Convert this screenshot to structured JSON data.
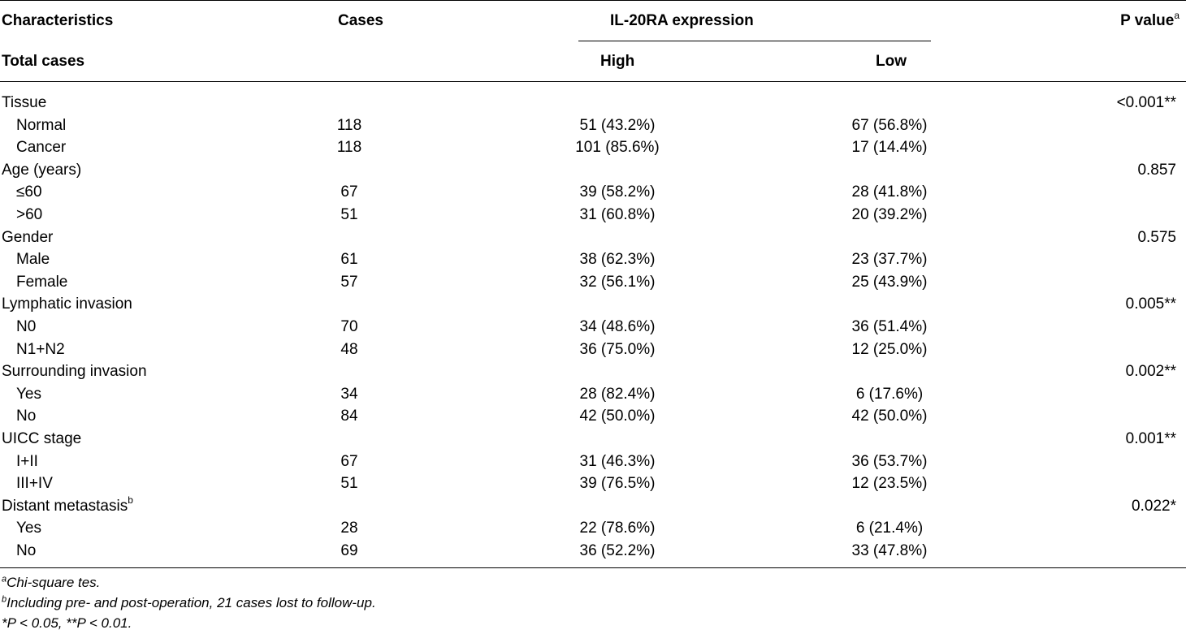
{
  "table": {
    "headers": {
      "characteristics": "Characteristics",
      "total_cases": "Total cases",
      "cases": "Cases",
      "expression": "IL-20RA expression",
      "high": "High",
      "low": "Low",
      "p_value": "P value",
      "p_value_sup": "a"
    },
    "rows": [
      {
        "label": "Tissue",
        "sup": "",
        "indent": false,
        "cases": "",
        "high": "",
        "low": "",
        "p": "<0.001**"
      },
      {
        "label": "Normal",
        "sup": "",
        "indent": true,
        "cases": "118",
        "high": "51 (43.2%)",
        "low": "67 (56.8%)",
        "p": ""
      },
      {
        "label": "Cancer",
        "sup": "",
        "indent": true,
        "cases": "118",
        "high": "101 (85.6%)",
        "low": "17 (14.4%)",
        "p": ""
      },
      {
        "label": "Age (years)",
        "sup": "",
        "indent": false,
        "cases": "",
        "high": "",
        "low": "",
        "p": "0.857"
      },
      {
        "label": "≤60",
        "sup": "",
        "indent": true,
        "cases": "67",
        "high": "39 (58.2%)",
        "low": "28 (41.8%)",
        "p": ""
      },
      {
        "label": ">60",
        "sup": "",
        "indent": true,
        "cases": "51",
        "high": "31 (60.8%)",
        "low": "20 (39.2%)",
        "p": ""
      },
      {
        "label": "Gender",
        "sup": "",
        "indent": false,
        "cases": "",
        "high": "",
        "low": "",
        "p": "0.575"
      },
      {
        "label": "Male",
        "sup": "",
        "indent": true,
        "cases": "61",
        "high": "38 (62.3%)",
        "low": "23 (37.7%)",
        "p": ""
      },
      {
        "label": "Female",
        "sup": "",
        "indent": true,
        "cases": "57",
        "high": "32 (56.1%)",
        "low": "25 (43.9%)",
        "p": ""
      },
      {
        "label": "Lymphatic invasion",
        "sup": "",
        "indent": false,
        "cases": "",
        "high": "",
        "low": "",
        "p": "0.005**"
      },
      {
        "label": "N0",
        "sup": "",
        "indent": true,
        "cases": "70",
        "high": "34 (48.6%)",
        "low": "36 (51.4%)",
        "p": ""
      },
      {
        "label": "N1+N2",
        "sup": "",
        "indent": true,
        "cases": "48",
        "high": "36 (75.0%)",
        "low": "12 (25.0%)",
        "p": ""
      },
      {
        "label": "Surrounding invasion",
        "sup": "",
        "indent": false,
        "cases": "",
        "high": "",
        "low": "",
        "p": "0.002**"
      },
      {
        "label": "Yes",
        "sup": "",
        "indent": true,
        "cases": "34",
        "high": "28 (82.4%)",
        "low": "6 (17.6%)",
        "p": ""
      },
      {
        "label": "No",
        "sup": "",
        "indent": true,
        "cases": "84",
        "high": "42 (50.0%)",
        "low": "42 (50.0%)",
        "p": ""
      },
      {
        "label": "UICC stage",
        "sup": "",
        "indent": false,
        "cases": "",
        "high": "",
        "low": "",
        "p": "0.001**"
      },
      {
        "label": "I+II",
        "sup": "",
        "indent": true,
        "cases": "67",
        "high": "31 (46.3%)",
        "low": "36 (53.7%)",
        "p": ""
      },
      {
        "label": "III+IV",
        "sup": "",
        "indent": true,
        "cases": "51",
        "high": "39 (76.5%)",
        "low": "12 (23.5%)",
        "p": ""
      },
      {
        "label": "Distant metastasis",
        "sup": "b",
        "indent": false,
        "cases": "",
        "high": "",
        "low": "",
        "p": "0.022*"
      },
      {
        "label": "Yes",
        "sup": "",
        "indent": true,
        "cases": "28",
        "high": "22 (78.6%)",
        "low": "6 (21.4%)",
        "p": ""
      },
      {
        "label": "No",
        "sup": "",
        "indent": true,
        "cases": "69",
        "high": "36 (52.2%)",
        "low": "33 (47.8%)",
        "p": ""
      }
    ]
  },
  "footnotes": {
    "a_mark": "a",
    "a_text": "Chi-square tes.",
    "b_mark": "b",
    "b_text": "Including pre- and post-operation, 21 cases lost to follow-up.",
    "c_text": "*P < 0.05, **P < 0.01."
  }
}
